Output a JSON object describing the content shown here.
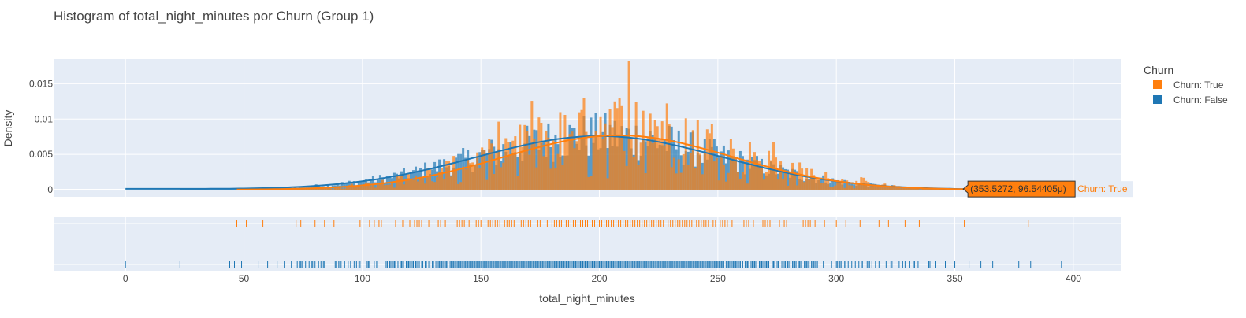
{
  "chart_data": {
    "type": "histogram",
    "title": "Histogram of total_night_minutes por Churn (Group 1)",
    "xlabel": "total_night_minutes",
    "ylabel": "Density",
    "xlim": [
      -30,
      420
    ],
    "ylim": [
      -0.001,
      0.0185
    ],
    "x_ticks": [
      0,
      50,
      100,
      150,
      200,
      250,
      300,
      350,
      400
    ],
    "y_ticks": [
      0,
      0.005,
      0.01,
      0.015
    ],
    "y_tick_labels": [
      "0",
      "0.005",
      "0.01",
      "0.015"
    ],
    "bin_width": 1,
    "legend_title": "Churn",
    "legend_position": "right",
    "series": [
      {
        "name": "Churn: True",
        "color": "#ff7f0e",
        "kde_peak": {
          "x": 208,
          "density": 0.0077
        },
        "rug_range": [
          47,
          381
        ],
        "hover": {
          "text": "(353.5272, 96.54405μ)",
          "label": "Churn: True",
          "x": 353.5272,
          "y": 9.654405e-05
        }
      },
      {
        "name": "Churn: False",
        "color": "#1f77b4",
        "kde_peak": {
          "x": 200,
          "density": 0.0076
        },
        "rug_range": [
          0,
          395
        ]
      }
    ],
    "grid": true
  }
}
